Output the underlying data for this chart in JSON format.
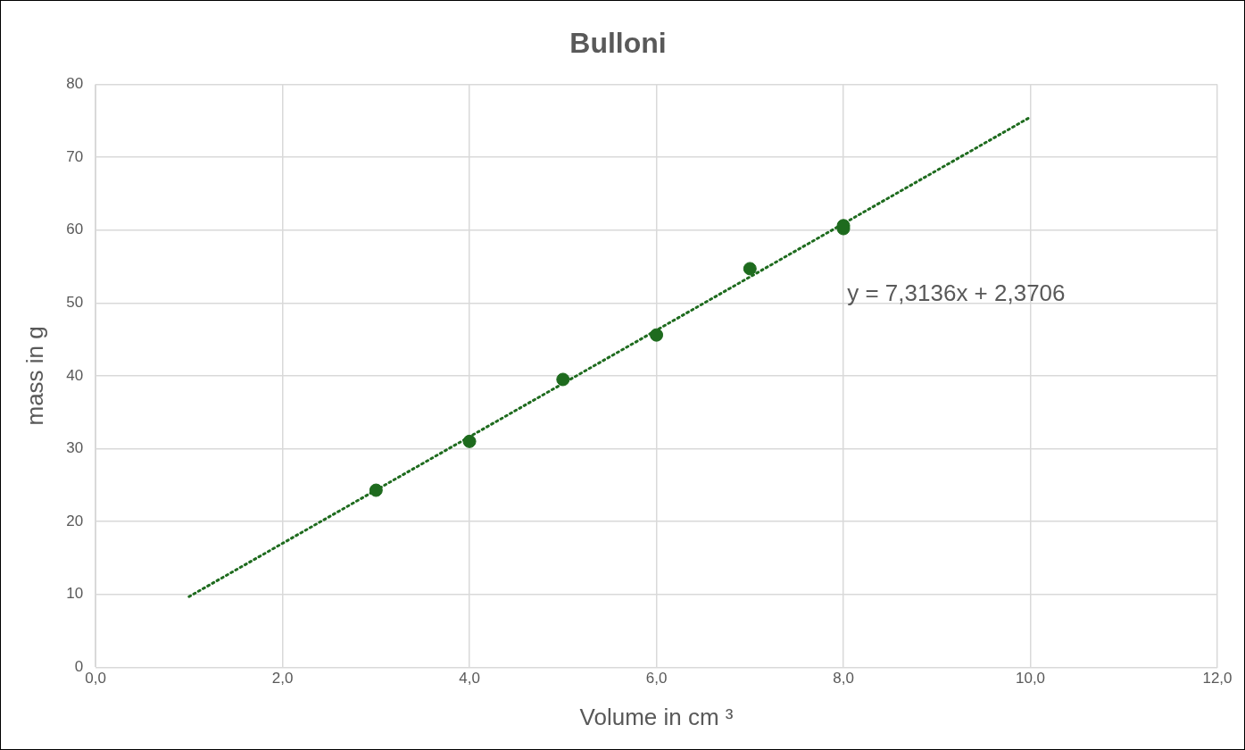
{
  "chart_data": {
    "type": "scatter",
    "title": "Bulloni",
    "xlabel": "Volume in cm ³",
    "ylabel": "mass in g",
    "series": [
      {
        "type": "scatter",
        "color": "#1e6b1e",
        "x": [
          3,
          4,
          5,
          6,
          7,
          8,
          8
        ],
        "values": [
          24.3,
          31.0,
          39.5,
          45.6,
          54.7,
          60.2,
          60.6
        ],
        "marker": "circle"
      },
      {
        "type": "line",
        "color": "#1e6b1e",
        "x": [
          1,
          10
        ],
        "values": [
          9.7,
          75.5
        ],
        "line_style": "dotted",
        "marker": "none"
      }
    ],
    "xlim": [
      0,
      12
    ],
    "xticks": [
      {
        "value": 0,
        "label": "0,0"
      },
      {
        "value": 2,
        "label": "2,0"
      },
      {
        "value": 4,
        "label": "4,0"
      },
      {
        "value": 6,
        "label": "6,0"
      },
      {
        "value": 8,
        "label": "8,0"
      },
      {
        "value": 10,
        "label": "10,0"
      },
      {
        "value": 12,
        "label": "12,0"
      }
    ],
    "ylim": [
      0,
      80
    ],
    "yticks": [
      0,
      10,
      20,
      30,
      40,
      50,
      60,
      70,
      80
    ],
    "grid": true,
    "legend": false,
    "annotations": [
      "y = 7,3136x + 2,3706"
    ]
  }
}
